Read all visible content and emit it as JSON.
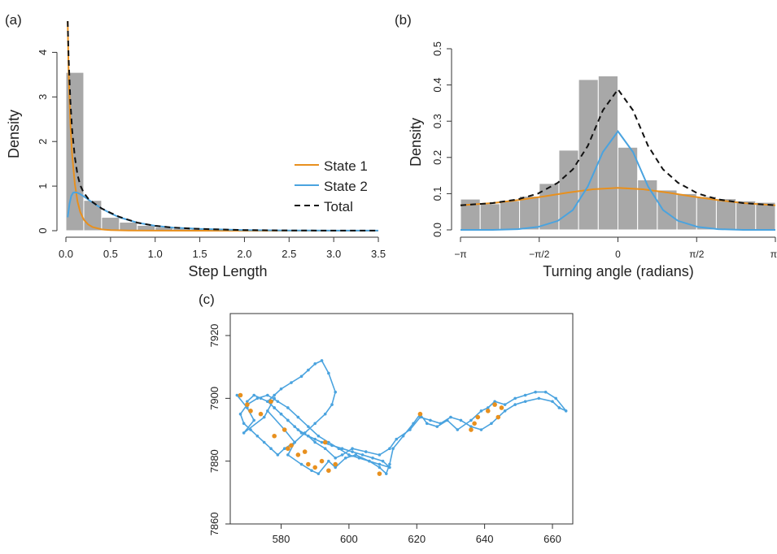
{
  "panel_labels": [
    "(a)",
    "(b)",
    "(c)"
  ],
  "colors": {
    "state1": "#e8901e",
    "state2": "#4aa3df",
    "total": "#111111",
    "hist": "#a8a8a8"
  },
  "chart_data": [
    {
      "panel": "(a)",
      "type": "bar",
      "xlabel": "Step Length",
      "ylabel": "Density",
      "xlim": [
        0,
        3.6
      ],
      "ylim": [
        0,
        4.7
      ],
      "x_ticks": [
        "0.0",
        "0.5",
        "1.0",
        "1.5",
        "2.0",
        "2.5",
        "3.0",
        "3.5"
      ],
      "y_ticks": [
        "0",
        "1",
        "2",
        "3",
        "4"
      ],
      "bin_width": 0.2,
      "bins": [
        0.0,
        0.2,
        0.4,
        0.6,
        0.8,
        1.0,
        1.2,
        1.4,
        1.6,
        1.8,
        2.0,
        2.2,
        2.4,
        2.6,
        2.8
      ],
      "values": [
        3.55,
        0.68,
        0.3,
        0.19,
        0.12,
        0.08,
        0.05,
        0.04,
        0.03,
        0.02,
        0.02,
        0.01,
        0.01,
        0.01,
        0.005
      ],
      "legend": {
        "position": "right",
        "entries": [
          "State 1",
          "State 2",
          "Total"
        ]
      },
      "series": [
        {
          "name": "State 1",
          "color": "#e8901e",
          "style": "solid",
          "x": [
            0.02,
            0.03,
            0.05,
            0.07,
            0.1,
            0.13,
            0.16,
            0.2,
            0.25,
            0.3,
            0.4,
            0.5,
            0.7,
            1.0,
            1.5,
            2.0,
            2.5,
            3.0,
            3.5
          ],
          "y": [
            4.7,
            3.6,
            2.4,
            1.7,
            1.05,
            0.65,
            0.42,
            0.25,
            0.14,
            0.08,
            0.03,
            0.012,
            0.003,
            0.001,
            0.0,
            0.0,
            0.0,
            0.0,
            0.0
          ]
        },
        {
          "name": "State 2",
          "color": "#4aa3df",
          "style": "solid",
          "x": [
            0.02,
            0.04,
            0.06,
            0.08,
            0.1,
            0.13,
            0.16,
            0.2,
            0.25,
            0.3,
            0.4,
            0.5,
            0.6,
            0.8,
            1.0,
            1.2,
            1.5,
            2.0,
            2.5,
            3.0,
            3.5
          ],
          "y": [
            0.3,
            0.6,
            0.78,
            0.85,
            0.86,
            0.85,
            0.82,
            0.77,
            0.7,
            0.63,
            0.5,
            0.39,
            0.3,
            0.18,
            0.11,
            0.07,
            0.04,
            0.015,
            0.006,
            0.002,
            0.001
          ]
        },
        {
          "name": "Total",
          "color": "#111111",
          "style": "dashed",
          "x": [
            0.02,
            0.03,
            0.05,
            0.07,
            0.1,
            0.13,
            0.16,
            0.2,
            0.25,
            0.3,
            0.4,
            0.5,
            0.6,
            0.8,
            1.0,
            1.2,
            1.5,
            2.0,
            2.5,
            3.0,
            3.5
          ],
          "y": [
            4.7,
            3.9,
            2.9,
            2.25,
            1.65,
            1.25,
            1.02,
            0.85,
            0.72,
            0.64,
            0.5,
            0.4,
            0.31,
            0.18,
            0.11,
            0.07,
            0.04,
            0.015,
            0.006,
            0.002,
            0.001
          ]
        }
      ]
    },
    {
      "panel": "(b)",
      "type": "bar",
      "xlabel": "Turning angle (radians)",
      "ylabel": "Density",
      "xlim": [
        -3.1416,
        3.1416
      ],
      "ylim": [
        0,
        0.5
      ],
      "x_ticks": [
        "−π",
        "−π/2",
        "0",
        "π/2",
        "π"
      ],
      "y_ticks": [
        "0.0",
        "0.1",
        "0.2",
        "0.3",
        "0.4",
        "0.5"
      ],
      "bin_edges": [
        -3.1416,
        -2.7489,
        -2.3562,
        -1.9635,
        -1.5708,
        -1.1781,
        -0.7854,
        -0.3927,
        0.0,
        0.3927,
        0.7854,
        1.1781,
        1.5708,
        1.9635,
        2.3562,
        2.7489,
        3.1416
      ],
      "values": [
        0.085,
        0.072,
        0.08,
        0.093,
        0.128,
        0.22,
        0.415,
        0.425,
        0.228,
        0.138,
        0.11,
        0.1,
        0.092,
        0.086,
        0.08,
        0.076
      ],
      "series": [
        {
          "name": "State 1",
          "color": "#e8901e",
          "style": "solid",
          "x": [
            -3.1416,
            -2.5,
            -2.0,
            -1.5,
            -1.0,
            -0.5,
            0.0,
            0.5,
            1.0,
            1.5,
            2.0,
            2.5,
            3.1416
          ],
          "y": [
            0.068,
            0.074,
            0.082,
            0.092,
            0.103,
            0.112,
            0.116,
            0.112,
            0.103,
            0.092,
            0.082,
            0.074,
            0.068
          ]
        },
        {
          "name": "State 2",
          "color": "#4aa3df",
          "style": "solid",
          "x": [
            -3.1416,
            -2.5,
            -2.0,
            -1.6,
            -1.2,
            -0.9,
            -0.6,
            -0.3,
            0.0,
            0.3,
            0.6,
            0.9,
            1.2,
            1.6,
            2.0,
            2.5,
            3.1416
          ],
          "y": [
            0.0,
            0.0,
            0.002,
            0.008,
            0.025,
            0.055,
            0.12,
            0.215,
            0.272,
            0.215,
            0.12,
            0.055,
            0.025,
            0.008,
            0.002,
            0.0,
            0.0
          ]
        },
        {
          "name": "Total",
          "color": "#111111",
          "style": "dashed",
          "x": [
            -3.1416,
            -2.5,
            -2.0,
            -1.6,
            -1.2,
            -0.9,
            -0.6,
            -0.3,
            0.0,
            0.3,
            0.6,
            0.9,
            1.2,
            1.6,
            2.0,
            2.5,
            3.1416
          ],
          "y": [
            0.068,
            0.074,
            0.084,
            0.1,
            0.13,
            0.167,
            0.232,
            0.33,
            0.388,
            0.33,
            0.232,
            0.167,
            0.13,
            0.1,
            0.084,
            0.074,
            0.068
          ]
        }
      ]
    },
    {
      "panel": "(c)",
      "type": "scatter",
      "xlim": [
        565,
        666
      ],
      "ylim": [
        7860,
        7927
      ],
      "x_ticks": [
        "580",
        "600",
        "620",
        "640",
        "660"
      ],
      "y_ticks": [
        "7860",
        "7880",
        "7900",
        "7920"
      ],
      "series": [
        {
          "name": "",
          "color": "#4aa3df",
          "style": "path",
          "x": [
            567,
            570,
            572,
            569,
            575,
            578,
            576,
            581,
            584,
            582,
            586,
            589,
            591,
            594,
            596,
            599,
            602,
            606,
            609,
            611,
            612,
            613,
            616,
            619,
            621,
            623,
            626,
            629,
            632,
            636,
            639,
            641,
            643,
            646,
            649,
            652,
            655,
            658,
            661,
            664,
            662,
            660,
            656,
            652,
            649,
            646,
            642,
            639,
            636,
            633,
            630,
            627,
            624,
            621,
            618,
            614,
            612,
            609,
            605,
            601,
            598,
            596,
            593,
            590,
            588,
            585,
            582,
            580,
            578,
            576,
            578,
            580,
            583,
            586,
            588,
            590,
            592,
            594,
            596,
            595,
            593,
            590,
            587,
            584,
            581,
            579,
            577,
            575,
            573,
            571,
            569,
            568,
            570,
            573,
            576,
            579,
            582,
            585,
            588,
            591,
            594,
            597,
            600,
            603,
            606,
            609,
            612,
            610,
            607,
            604,
            601,
            598,
            595,
            592,
            590,
            588,
            586,
            584,
            582,
            580,
            578,
            576,
            574,
            572,
            570
          ],
          "y": [
            7901,
            7897,
            7893,
            7889,
            7894,
            7900,
            7896,
            7890,
            7886,
            7882,
            7879,
            7877,
            7876,
            7880,
            7878,
            7881,
            7882,
            7880,
            7878,
            7876,
            7879,
            7884,
            7888,
            7892,
            7895,
            7892,
            7891,
            7893,
            7890,
            7893,
            7896,
            7897,
            7899,
            7898,
            7900,
            7901,
            7902,
            7902,
            7900,
            7896,
            7897,
            7899,
            7900,
            7899,
            7898,
            7896,
            7892,
            7890,
            7891,
            7893,
            7894,
            7892,
            7893,
            7894,
            7890,
            7887,
            7884,
            7882,
            7883,
            7884,
            7882,
            7881,
            7884,
            7886,
            7888,
            7890,
            7893,
            7895,
            7897,
            7899,
            7901,
            7903,
            7905,
            7907,
            7909,
            7911,
            7912,
            7908,
            7902,
            7898,
            7895,
            7892,
            7889,
            7886,
            7884,
            7882,
            7884,
            7886,
            7888,
            7890,
            7892,
            7895,
            7898,
            7900,
            7901,
            7899,
            7897,
            7894,
            7891,
            7888,
            7886,
            7884,
            7882,
            7881,
            7880,
            7879,
            7878,
            7880,
            7881,
            7882,
            7883,
            7884,
            7885,
            7886,
            7887,
            7888,
            7889,
            7891,
            7893,
            7895,
            7897,
            7899,
            7900,
            7901,
            7899
          ]
        },
        {
          "name": "",
          "color": "#e8901e",
          "style": "points",
          "x": [
            568,
            570,
            574,
            577,
            581,
            583,
            585,
            588,
            590,
            592,
            594,
            596,
            609,
            621,
            636,
            637,
            638,
            641,
            643,
            644,
            645,
            578,
            587,
            593,
            571,
            582
          ],
          "y": [
            7901,
            7898,
            7895,
            7899,
            7890,
            7885,
            7882,
            7879,
            7878,
            7880,
            7877,
            7879,
            7876,
            7895,
            7890,
            7892,
            7894,
            7896,
            7898,
            7894,
            7897,
            7888,
            7883,
            7886,
            7896,
            7884
          ]
        }
      ]
    }
  ]
}
